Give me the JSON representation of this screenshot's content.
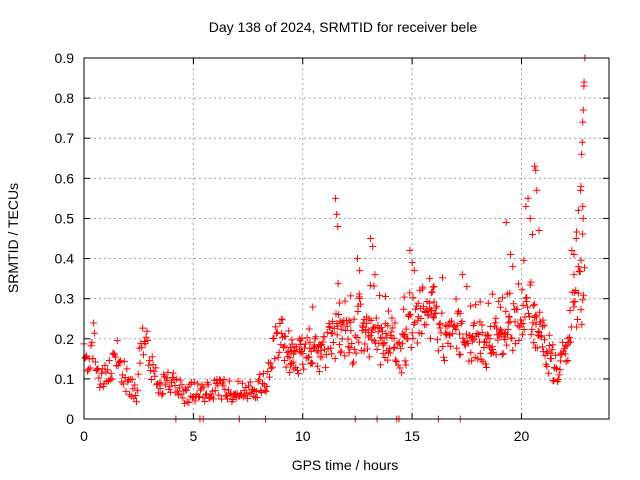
{
  "chart_data": {
    "type": "scatter",
    "title": "Day 138 of 2024, SRMTID for receiver bele",
    "xlabel": "GPS time / hours",
    "ylabel": "SRMTID / TECUs",
    "xlim": [
      0,
      24
    ],
    "ylim": [
      0,
      0.9
    ],
    "xticks": [
      0,
      5,
      10,
      15,
      20
    ],
    "yticks": [
      0,
      0.1,
      0.2,
      0.3,
      0.4,
      0.5,
      0.6,
      0.7,
      0.8,
      0.9
    ],
    "xtick_labels": [
      "0",
      "5",
      "10",
      "15",
      "20"
    ],
    "ytick_labels": [
      "0",
      "0.1",
      "0.2",
      "0.3",
      "0.4",
      "0.5",
      "0.6",
      "0.7",
      "0.8",
      "0.9"
    ],
    "grid": true,
    "marker": "+",
    "series": [
      {
        "name": "SRMTID",
        "color": "#ff0000",
        "profile": [
          [
            0.0,
            0.15
          ],
          [
            0.2,
            0.16
          ],
          [
            0.4,
            0.18
          ],
          [
            0.5,
            0.22
          ],
          [
            0.55,
            0.14
          ],
          [
            0.7,
            0.1
          ],
          [
            1.0,
            0.1
          ],
          [
            1.3,
            0.12
          ],
          [
            1.5,
            0.17
          ],
          [
            1.7,
            0.13
          ],
          [
            2.0,
            0.09
          ],
          [
            2.4,
            0.07
          ],
          [
            2.6,
            0.18
          ],
          [
            2.8,
            0.2
          ],
          [
            3.0,
            0.14
          ],
          [
            3.3,
            0.1
          ],
          [
            3.6,
            0.09
          ],
          [
            4.0,
            0.09
          ],
          [
            4.3,
            0.08
          ],
          [
            4.6,
            0.06
          ],
          [
            5.0,
            0.07
          ],
          [
            5.4,
            0.06
          ],
          [
            5.8,
            0.07
          ],
          [
            6.2,
            0.08
          ],
          [
            6.6,
            0.07
          ],
          [
            7.0,
            0.07
          ],
          [
            7.5,
            0.08
          ],
          [
            8.0,
            0.08
          ],
          [
            8.4,
            0.1
          ],
          [
            8.7,
            0.18
          ],
          [
            9.0,
            0.21
          ],
          [
            9.3,
            0.15
          ],
          [
            9.6,
            0.15
          ],
          [
            10.0,
            0.16
          ],
          [
            10.5,
            0.17
          ],
          [
            11.0,
            0.16
          ],
          [
            11.3,
            0.2
          ],
          [
            11.6,
            0.21
          ],
          [
            12.0,
            0.2
          ],
          [
            12.3,
            0.19
          ],
          [
            12.6,
            0.24
          ],
          [
            13.0,
            0.2
          ],
          [
            13.3,
            0.23
          ],
          [
            13.6,
            0.18
          ],
          [
            14.0,
            0.2
          ],
          [
            14.5,
            0.16
          ],
          [
            15.0,
            0.22
          ],
          [
            15.5,
            0.27
          ],
          [
            16.0,
            0.25
          ],
          [
            16.5,
            0.2
          ],
          [
            17.0,
            0.22
          ],
          [
            17.5,
            0.18
          ],
          [
            18.0,
            0.2
          ],
          [
            18.5,
            0.17
          ],
          [
            19.0,
            0.2
          ],
          [
            19.5,
            0.22
          ],
          [
            20.0,
            0.26
          ],
          [
            20.3,
            0.3
          ],
          [
            20.6,
            0.22
          ],
          [
            21.0,
            0.2
          ],
          [
            21.3,
            0.14
          ],
          [
            21.6,
            0.12
          ],
          [
            22.0,
            0.16
          ],
          [
            22.3,
            0.25
          ],
          [
            22.6,
            0.33
          ],
          [
            22.9,
            0.3
          ]
        ],
        "spikes": [
          [
            11.5,
            0.55
          ],
          [
            11.55,
            0.51
          ],
          [
            11.6,
            0.48
          ],
          [
            12.5,
            0.4
          ],
          [
            12.6,
            0.37
          ],
          [
            13.1,
            0.45
          ],
          [
            13.2,
            0.43
          ],
          [
            13.3,
            0.36
          ],
          [
            14.9,
            0.42
          ],
          [
            15.0,
            0.39
          ],
          [
            15.1,
            0.37
          ],
          [
            15.8,
            0.35
          ],
          [
            16.0,
            0.33
          ],
          [
            17.3,
            0.36
          ],
          [
            17.5,
            0.33
          ],
          [
            19.3,
            0.49
          ],
          [
            19.5,
            0.41
          ],
          [
            19.6,
            0.38
          ],
          [
            20.2,
            0.53
          ],
          [
            20.3,
            0.55
          ],
          [
            20.4,
            0.5
          ],
          [
            20.5,
            0.46
          ],
          [
            20.6,
            0.63
          ],
          [
            20.65,
            0.62
          ],
          [
            20.7,
            0.57
          ],
          [
            20.8,
            0.47
          ],
          [
            22.3,
            0.42
          ],
          [
            22.4,
            0.41
          ],
          [
            22.5,
            0.45
          ],
          [
            22.6,
            0.52
          ],
          [
            22.7,
            0.57
          ],
          [
            22.72,
            0.58
          ],
          [
            22.75,
            0.66
          ],
          [
            22.78,
            0.69
          ],
          [
            22.8,
            0.74
          ],
          [
            22.82,
            0.77
          ],
          [
            22.85,
            0.83
          ],
          [
            22.86,
            0.84
          ],
          [
            22.9,
            0.9
          ],
          [
            22.8,
            0.53
          ],
          [
            22.82,
            0.5
          ],
          [
            22.6,
            0.38
          ],
          [
            22.4,
            0.36
          ]
        ],
        "zeros": [
          4.2,
          5.3,
          5.45,
          7.1,
          8.3,
          12.4,
          13.4,
          14.3,
          14.4,
          16.2,
          17.2
        ]
      }
    ]
  }
}
